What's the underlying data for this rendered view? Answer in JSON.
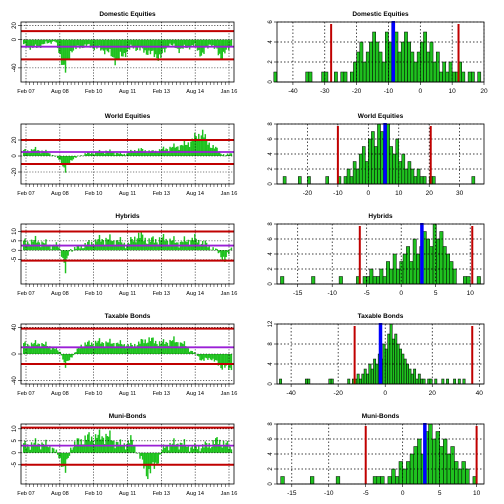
{
  "colors": {
    "bar_fill": "#1fc21f",
    "bar_stroke": "#000000",
    "mean_line": "#9a1fd6",
    "band_line": "#c00000",
    "median_line": "#0000ff",
    "grid": "#000000"
  },
  "chart_data": [
    {
      "type": "bar",
      "title": "Domestic Equities",
      "categories": [
        "Feb 07",
        "Aug 08",
        "Feb 10",
        "Aug 11",
        "Feb 13",
        "Aug 14",
        "Jan 16"
      ],
      "ylim": [
        -60,
        25
      ],
      "yticks": [
        20,
        0,
        -40
      ],
      "reference_lines": {
        "mean": -10,
        "upper": 12,
        "lower": -28
      },
      "keypoints": [
        [
          0,
          -8
        ],
        [
          0.05,
          -12
        ],
        [
          0.1,
          -6
        ],
        [
          0.15,
          -2
        ],
        [
          0.18,
          -25
        ],
        [
          0.2,
          -45
        ],
        [
          0.23,
          -14
        ],
        [
          0.3,
          -8
        ],
        [
          0.4,
          -16
        ],
        [
          0.45,
          -30
        ],
        [
          0.52,
          -10
        ],
        [
          0.6,
          -18
        ],
        [
          0.66,
          -25
        ],
        [
          0.7,
          -6
        ],
        [
          0.75,
          -14
        ],
        [
          0.82,
          -8
        ],
        [
          0.86,
          -22
        ],
        [
          0.9,
          -5
        ],
        [
          0.95,
          -24
        ],
        [
          1,
          -9
        ]
      ],
      "grid": true
    },
    {
      "type": "bar",
      "title": "Domestic Equities",
      "xlim": [
        -45,
        20
      ],
      "xticks": [
        -40,
        -30,
        -20,
        -10,
        0,
        10,
        20
      ],
      "ylim": [
        0,
        6
      ],
      "yticks": [
        0,
        2,
        4,
        6
      ],
      "bins": [
        {
          "from": -46,
          "to": -45,
          "values": [
            1
          ]
        },
        {
          "from": -36,
          "to": -34,
          "values": [
            1,
            1
          ]
        },
        {
          "from": -31,
          "to": -28,
          "values": [
            1,
            1,
            0
          ]
        },
        {
          "from": -27,
          "to": -23,
          "values": [
            1,
            0,
            1,
            1
          ]
        },
        {
          "from": -22,
          "to": 19,
          "values": [
            1,
            2,
            3,
            4,
            2,
            3,
            4,
            5,
            4,
            3,
            2,
            5,
            4,
            6,
            5,
            3,
            4,
            5,
            4,
            3,
            2,
            3,
            4,
            5,
            3,
            4,
            2,
            3,
            1,
            2,
            1,
            2,
            1,
            1,
            2,
            1,
            0,
            1,
            1,
            0,
            1
          ]
        }
      ],
      "reference_lines": {
        "lower": -28,
        "median": -8.5,
        "upper": 12
      },
      "grid": true
    },
    {
      "type": "bar",
      "title": "World Equities",
      "categories": [
        "Feb 07",
        "Aug 08",
        "Feb 10",
        "Aug 11",
        "Feb 13",
        "Aug 14",
        "Jan 16"
      ],
      "ylim": [
        -35,
        40
      ],
      "yticks": [
        20,
        0,
        -20
      ],
      "reference_lines": {
        "mean": 5,
        "upper": 20,
        "lower": -10
      },
      "keypoints": [
        [
          0,
          6
        ],
        [
          0.06,
          8
        ],
        [
          0.12,
          4
        ],
        [
          0.16,
          -2
        ],
        [
          0.18,
          -6
        ],
        [
          0.2,
          -20
        ],
        [
          0.23,
          -4
        ],
        [
          0.3,
          3
        ],
        [
          0.4,
          6
        ],
        [
          0.48,
          2
        ],
        [
          0.55,
          8
        ],
        [
          0.62,
          5
        ],
        [
          0.7,
          10
        ],
        [
          0.78,
          14
        ],
        [
          0.84,
          25
        ],
        [
          0.86,
          30
        ],
        [
          0.88,
          18
        ],
        [
          0.93,
          8
        ],
        [
          0.97,
          0
        ],
        [
          1,
          4
        ]
      ],
      "grid": true
    },
    {
      "type": "bar",
      "title": "World Equities",
      "xlim": [
        -30,
        38
      ],
      "xticks": [
        -20,
        -10,
        0,
        10,
        20,
        30
      ],
      "ylim": [
        0,
        8
      ],
      "yticks": [
        0,
        2,
        4,
        6,
        8
      ],
      "bins": [
        {
          "from": -28,
          "to": -27,
          "values": [
            1
          ]
        },
        {
          "from": -23,
          "to": -22,
          "values": [
            1
          ]
        },
        {
          "from": -20,
          "to": -19,
          "values": [
            1
          ]
        },
        {
          "from": -14,
          "to": -13,
          "values": [
            1
          ]
        },
        {
          "from": -10,
          "to": 22,
          "values": [
            1,
            0,
            1,
            2,
            1,
            3,
            2,
            4,
            5,
            3,
            6,
            7,
            5,
            8,
            7,
            6,
            8,
            5,
            4,
            6,
            3,
            4,
            2,
            3,
            2,
            1,
            2,
            1,
            1,
            0,
            1,
            1
          ]
        },
        {
          "from": 34,
          "to": 35,
          "values": [
            1
          ]
        }
      ],
      "reference_lines": {
        "lower": -10,
        "median": 5.5,
        "upper": 20.5
      },
      "grid": true
    },
    {
      "type": "bar",
      "title": "Hybrids",
      "categories": [
        "Feb 07",
        "Aug 08",
        "Feb 10",
        "Aug 11",
        "Feb 13",
        "Aug 14",
        "Jan 16"
      ],
      "ylim": [
        -18,
        14
      ],
      "yticks": [
        10,
        5,
        0,
        -5
      ],
      "reference_lines": {
        "mean": 2.5,
        "upper": 10,
        "lower": -5.5
      },
      "keypoints": [
        [
          0,
          4
        ],
        [
          0.06,
          5
        ],
        [
          0.12,
          3
        ],
        [
          0.17,
          2
        ],
        [
          0.19,
          -4
        ],
        [
          0.2,
          -12
        ],
        [
          0.22,
          0
        ],
        [
          0.3,
          3
        ],
        [
          0.38,
          6
        ],
        [
          0.45,
          5
        ],
        [
          0.5,
          3
        ],
        [
          0.55,
          8
        ],
        [
          0.6,
          5
        ],
        [
          0.68,
          6
        ],
        [
          0.75,
          4
        ],
        [
          0.82,
          6
        ],
        [
          0.88,
          3
        ],
        [
          0.94,
          -1
        ],
        [
          0.97,
          -6
        ],
        [
          1,
          2
        ]
      ],
      "grid": true
    },
    {
      "type": "bar",
      "title": "Hybrids",
      "xlim": [
        -18,
        12
      ],
      "xticks": [
        -15,
        -10,
        -5,
        0,
        5,
        10
      ],
      "ylim": [
        0,
        8
      ],
      "yticks": [
        0,
        2,
        4,
        6,
        8
      ],
      "bins": [
        {
          "from": -17.5,
          "to": -17,
          "values": [
            1
          ]
        },
        {
          "from": -13,
          "to": -12.5,
          "values": [
            1
          ]
        },
        {
          "from": -9,
          "to": -8.5,
          "values": [
            1
          ]
        },
        {
          "from": -6.5,
          "to": 8,
          "values": [
            1,
            0,
            1,
            1,
            2,
            1,
            1,
            2,
            1,
            3,
            2,
            4,
            2,
            3,
            4,
            5,
            3,
            6,
            4,
            5,
            7,
            6,
            5,
            8,
            6,
            7,
            5,
            4,
            3,
            2
          ]
        },
        {
          "from": 9,
          "to": 10,
          "values": [
            1,
            1
          ]
        },
        {
          "from": 11,
          "to": 11.5,
          "values": [
            1
          ]
        }
      ],
      "reference_lines": {
        "lower": -6,
        "median": 3,
        "upper": 10.3
      },
      "grid": true
    },
    {
      "type": "bar",
      "title": "Taxable Bonds",
      "categories": [
        "Feb 07",
        "Aug 08",
        "Feb 10",
        "Aug 11",
        "Feb 13",
        "Aug 14",
        "Jan 16"
      ],
      "ylim": [
        -45,
        45
      ],
      "yticks": [
        40,
        0,
        -40
      ],
      "reference_lines": {
        "mean": 10,
        "upper": 38,
        "lower": -15
      },
      "keypoints": [
        [
          0,
          14
        ],
        [
          0.08,
          16
        ],
        [
          0.14,
          10
        ],
        [
          0.18,
          2
        ],
        [
          0.2,
          -20
        ],
        [
          0.22,
          -8
        ],
        [
          0.28,
          14
        ],
        [
          0.36,
          18
        ],
        [
          0.45,
          16
        ],
        [
          0.52,
          12
        ],
        [
          0.6,
          22
        ],
        [
          0.66,
          16
        ],
        [
          0.72,
          20
        ],
        [
          0.77,
          15
        ],
        [
          0.8,
          6
        ],
        [
          0.83,
          0
        ],
        [
          0.86,
          -10
        ],
        [
          0.9,
          -6
        ],
        [
          0.95,
          -18
        ],
        [
          1,
          -22
        ]
      ],
      "grid": true
    },
    {
      "type": "bar",
      "title": "Taxable Bonds",
      "xlim": [
        -46,
        42
      ],
      "xticks": [
        -40,
        -20,
        0,
        20,
        40
      ],
      "ylim": [
        0,
        12
      ],
      "yticks": [
        0,
        4,
        8,
        12
      ],
      "bins": [
        {
          "from": -45,
          "to": -44,
          "values": [
            1
          ]
        },
        {
          "from": -34,
          "to": -32,
          "values": [
            1,
            1
          ]
        },
        {
          "from": -24,
          "to": -22,
          "values": [
            1,
            1
          ]
        },
        {
          "from": -16,
          "to": 34,
          "values": [
            1,
            0,
            1,
            1,
            2,
            1,
            2,
            3,
            2,
            4,
            3,
            5,
            4,
            6,
            5,
            8,
            7,
            10,
            12,
            9,
            10,
            8,
            7,
            6,
            5,
            4,
            3,
            2,
            3,
            1,
            2,
            1,
            1,
            0,
            1,
            1,
            0,
            1,
            0,
            0,
            1,
            0,
            1,
            0,
            0,
            1,
            0,
            1,
            0,
            1
          ]
        }
      ],
      "reference_lines": {
        "lower": -13,
        "median": -2,
        "upper": 37
      },
      "grid": true
    },
    {
      "type": "bar",
      "title": "Muni-Bonds",
      "categories": [
        "Feb 07",
        "Aug 08",
        "Feb 10",
        "Aug 11",
        "Feb 13",
        "Aug 14",
        "Jan 16"
      ],
      "ylim": [
        -13,
        12
      ],
      "yticks": [
        10,
        5,
        0,
        -5
      ],
      "reference_lines": {
        "mean": 3,
        "upper": 10.5,
        "lower": -5
      },
      "keypoints": [
        [
          0,
          3
        ],
        [
          0.08,
          4
        ],
        [
          0.14,
          2
        ],
        [
          0.18,
          -3
        ],
        [
          0.2,
          -8
        ],
        [
          0.23,
          3
        ],
        [
          0.3,
          6
        ],
        [
          0.4,
          7
        ],
        [
          0.47,
          3
        ],
        [
          0.52,
          5
        ],
        [
          0.56,
          -2
        ],
        [
          0.6,
          -9
        ],
        [
          0.64,
          -4
        ],
        [
          0.68,
          3
        ],
        [
          0.75,
          4
        ],
        [
          0.82,
          2
        ],
        [
          0.88,
          3
        ],
        [
          0.94,
          5
        ],
        [
          1,
          2
        ]
      ],
      "grid": true
    },
    {
      "type": "bar",
      "title": "Muni-Bonds",
      "xlim": [
        -17,
        11
      ],
      "xticks": [
        -15,
        -10,
        -5,
        0,
        5,
        10
      ],
      "ylim": [
        0,
        8
      ],
      "yticks": [
        0,
        2,
        4,
        6,
        8
      ],
      "bins": [
        {
          "from": -16.5,
          "to": -16,
          "values": [
            1
          ]
        },
        {
          "from": -12.5,
          "to": -12,
          "values": [
            1
          ]
        },
        {
          "from": -9,
          "to": -8.5,
          "values": [
            1
          ]
        },
        {
          "from": -4,
          "to": 9,
          "values": [
            1,
            1,
            1,
            0,
            1,
            2,
            1,
            3,
            2,
            3,
            4,
            5,
            6,
            4,
            7,
            8,
            6,
            7,
            5,
            6,
            4,
            5,
            3,
            2,
            3,
            2
          ]
        },
        {
          "from": 9.5,
          "to": 10,
          "values": [
            1
          ]
        }
      ],
      "reference_lines": {
        "lower": -5,
        "median": 3,
        "upper": 10
      },
      "grid": true
    }
  ]
}
